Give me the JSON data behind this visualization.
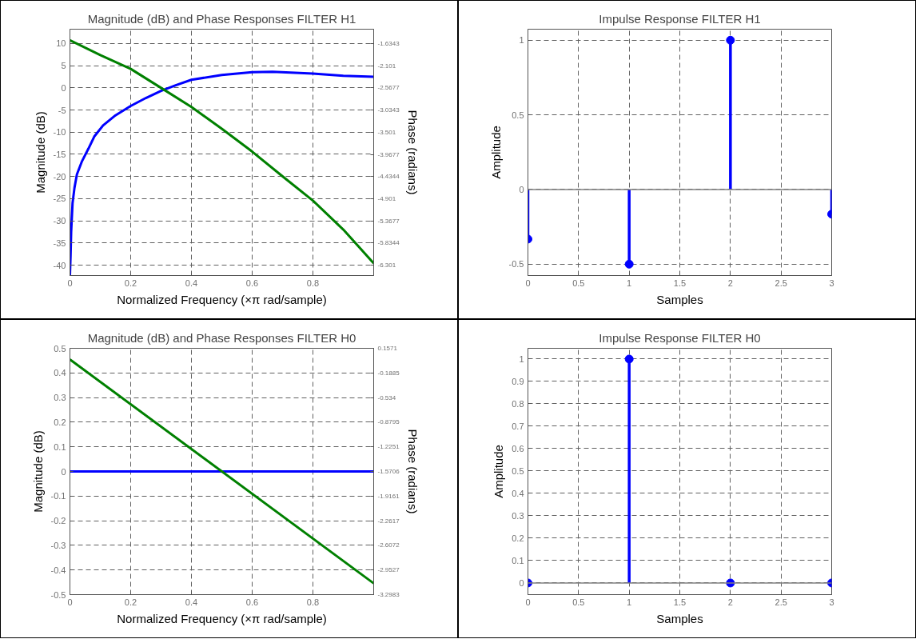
{
  "chart_data": [
    {
      "type": "line",
      "title": "Magnitude (dB) and Phase Responses FILTER H1",
      "xlabel": "Normalized Frequency (×π rad/sample)",
      "ylabel": "Magnitude (dB)",
      "y2label": "Phase (radians)",
      "series": [
        {
          "color": "#0000ff",
          "x": [
            0,
            0.002,
            0.004,
            0.0086,
            0.015,
            0.023,
            0.04,
            0.061,
            0.08,
            0.109,
            0.15,
            0.2,
            0.25,
            0.3,
            0.35,
            0.4,
            0.5,
            0.6,
            0.667,
            0.8,
            0.9,
            1.0
          ],
          "values": [
            -42.3,
            -38,
            -32.5,
            -26,
            -22.5,
            -19.5,
            -16.5,
            -13.7,
            -11,
            -8.5,
            -6.2,
            -4.1,
            -2.3,
            -0.7,
            0.6,
            1.8,
            2.9,
            3.5,
            3.6,
            3.2,
            2.7,
            2.5
          ]
        },
        {
          "color": "#008000",
          "axis": "y2",
          "x": [
            0,
            0.1,
            0.2,
            0.3,
            0.4,
            0.5,
            0.6,
            0.7,
            0.8,
            0.9,
            1.0
          ],
          "values": [
            -1.57,
            -1.88,
            -2.17,
            -2.57,
            -2.97,
            -3.43,
            -3.91,
            -4.43,
            -4.94,
            -5.55,
            -6.26
          ]
        }
      ],
      "xlim": [
        0,
        1
      ],
      "xticks": [
        0,
        0.2,
        0.4,
        0.6,
        0.8
      ],
      "ylim": [
        -42.3,
        13.2
      ],
      "yticks": [
        -40,
        -35,
        -30,
        -25,
        -20,
        -15,
        -10,
        -5,
        0,
        5,
        10
      ],
      "y2lim": [
        -6.5157,
        -1.3356
      ],
      "y2ticks": [
        -6.301,
        -5.8344,
        -5.3677,
        -4.901,
        -4.4344,
        -3.9677,
        -3.501,
        -3.0343,
        -2.5677,
        -2.101,
        -1.6343
      ],
      "grid": true,
      "marker": "none",
      "line_style": "solid"
    },
    {
      "type": "lollipop",
      "title": "Impulse Response FILTER H1",
      "xlabel": "Samples",
      "ylabel": "Amplitude",
      "series": [
        {
          "color": "#0000ff",
          "x": [
            0,
            1,
            2,
            3
          ],
          "values": [
            -0.332,
            -0.5,
            1,
            -0.165
          ]
        }
      ],
      "xlim": [
        0,
        3
      ],
      "xticks": [
        0,
        0.5,
        1,
        1.5,
        2,
        2.5,
        3
      ],
      "ylim": [
        -0.576,
        1.074
      ],
      "yticks": [
        -0.5,
        0,
        0.5,
        1
      ],
      "ref_lines": [
        {
          "axis": "y",
          "value": 0,
          "color": "#808080"
        }
      ],
      "grid": true,
      "marker": "circle"
    },
    {
      "type": "line",
      "title": "Magnitude (dB) and Phase Responses FILTER H0",
      "xlabel": "Normalized Frequency (×π rad/sample)",
      "ylabel": "Magnitude (dB)",
      "y2label": "Phase (radians)",
      "series": [
        {
          "color": "#0000ff",
          "x": [
            0,
            1
          ],
          "values": [
            0,
            0
          ]
        },
        {
          "color": "#008000",
          "axis": "y2",
          "x": [
            0,
            1
          ],
          "values": [
            0,
            -3.14
          ]
        }
      ],
      "xlim": [
        0,
        1
      ],
      "xticks": [
        0,
        0.2,
        0.4,
        0.6,
        0.8
      ],
      "ylim": [
        -0.5,
        0.5
      ],
      "yticks": [
        -0.5,
        -0.4,
        -0.3,
        -0.2,
        -0.1,
        0,
        0.1,
        0.2,
        0.3,
        0.4,
        0.5
      ],
      "y2lim": [
        -3.2983,
        0.1571
      ],
      "y2ticks": [
        -3.2983,
        -2.9527,
        -2.6072,
        -2.2617,
        -1.9161,
        -1.5706,
        -1.2251,
        -0.8795,
        -0.534,
        -0.1885,
        0.1571
      ],
      "grid": true,
      "marker": "none",
      "line_style": "solid"
    },
    {
      "type": "lollipop",
      "title": "Impulse Response FILTER H0",
      "xlabel": "Samples",
      "ylabel": "Amplitude",
      "series": [
        {
          "color": "#0000ff",
          "x": [
            0,
            1,
            2,
            3
          ],
          "values": [
            0,
            1,
            0,
            0
          ]
        }
      ],
      "xlim": [
        0,
        3
      ],
      "xticks": [
        0,
        0.5,
        1,
        1.5,
        2,
        2.5,
        3
      ],
      "ylim": [
        -0.052,
        1.048
      ],
      "yticks": [
        0,
        0.1,
        0.2,
        0.3,
        0.4,
        0.5,
        0.6,
        0.7,
        0.8,
        0.9,
        1
      ],
      "ref_lines": [
        {
          "axis": "y",
          "value": 0,
          "color": "#808080"
        }
      ],
      "grid": true,
      "marker": "circle"
    }
  ]
}
